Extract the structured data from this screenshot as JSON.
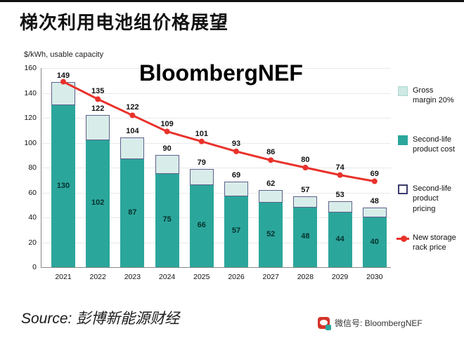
{
  "header": {
    "title": "梯次利用电池组价格展望",
    "watermark": "BloombergNEF"
  },
  "axis": {
    "unit_label": "$/kWh, usable capacity"
  },
  "footer": {
    "source": "Source: 彭博新能源财经",
    "wechat": "微信号: BloombergNEF"
  },
  "chart_data": {
    "type": "bar",
    "title": "梯次利用电池组价格展望",
    "ylabel": "$/kWh, usable capacity",
    "ylim": [
      0,
      160
    ],
    "yticks": [
      0,
      20,
      40,
      60,
      80,
      100,
      120,
      140,
      160
    ],
    "categories": [
      "2021",
      "2022",
      "2023",
      "2024",
      "2025",
      "2026",
      "2027",
      "2028",
      "2029",
      "2030"
    ],
    "series": [
      {
        "name": "Second-life product cost",
        "type": "bar-segment",
        "color": "#2ba69b",
        "values": [
          130,
          102,
          87,
          75,
          66,
          57,
          52,
          48,
          44,
          40
        ]
      },
      {
        "name": "Second-life product pricing",
        "type": "bar-total",
        "color": "#d8ede9",
        "values": [
          149,
          122,
          104,
          90,
          79,
          69,
          62,
          57,
          53,
          48
        ]
      },
      {
        "name": "New storage rack price",
        "type": "line",
        "color": "#e8322b",
        "values": [
          149,
          135,
          122,
          109,
          101,
          93,
          86,
          80,
          74,
          69
        ]
      }
    ],
    "legend": [
      {
        "label": "Gross margin 20%",
        "swatch": "light"
      },
      {
        "label": "Second-life product cost",
        "swatch": "solid"
      },
      {
        "label": "Second-life product pricing",
        "swatch": "outline"
      },
      {
        "label": "New storage rack price",
        "swatch": "line"
      }
    ],
    "legend_position": "right",
    "grid": true
  }
}
